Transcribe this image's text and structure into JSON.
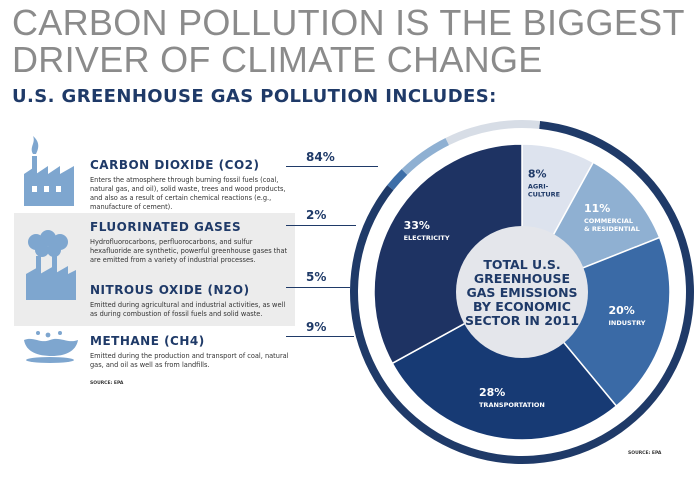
{
  "header": {
    "title_line1": "CARBON POLLUTION IS THE BIGGEST",
    "title_line2": "DRIVER OF CLIMATE CHANGE",
    "subtitle": "U.S. GREENHOUSE GAS POLLUTION INCLUDES:"
  },
  "gases": [
    {
      "name": "CARBON DIOXIDE (CO2)",
      "percent": "84%",
      "desc": "Enters the atmosphere through burning fossil fuels (coal, natural gas, and oil), solid waste, trees and wood products, and also as a result of certain chemical reactions (e.g., manufacture of cement)."
    },
    {
      "name": "FLUORINATED GASES",
      "percent": "2%",
      "desc": "Hydrofluorocarbons, perfluorocarbons, and sulfur hexafluoride are synthetic, powerful greenhouse gases that are emitted from a variety of industrial processes."
    },
    {
      "name": "NITROUS OXIDE (N2O)",
      "percent": "5%",
      "desc": "Emitted during agricultural and industrial activities, as well as during combustion of fossil fuels and solid waste."
    },
    {
      "name": "METHANE (CH4)",
      "percent": "9%",
      "desc": "Emitted during the production and transport of coal, natural gas, and oil as well as from landfills."
    }
  ],
  "source_left": "SOURCE: EPA",
  "source_right": "SOURCE: EPA",
  "colors": {
    "co2": "#1f3a68",
    "fluorinated": "#3e6fa8",
    "nitrous": "#8fb0d2",
    "methane": "#d7dde6",
    "electricity": "#1e3363",
    "agriculture": "#dde3ee",
    "commercial": "#8fb0d2",
    "industry": "#3a6aa6",
    "transportation": "#173a74",
    "center": "#e4e6eb"
  },
  "chart_data": [
    {
      "type": "pie",
      "title": "",
      "categories": [
        "CARBON DIOXIDE (CO2)",
        "FLUORINATED GASES",
        "NITROUS OXIDE (N2O)",
        "METHANE (CH4)"
      ],
      "values": [
        84,
        2,
        5,
        9
      ]
    },
    {
      "type": "pie",
      "title": "TOTAL U.S. GREENHOUSE GAS EMISSIONS BY ECONOMIC SECTOR IN 2011",
      "center_lines": [
        "TOTAL U.S.",
        "GREENHOUSE",
        "GAS EMISSIONS",
        "BY ECONOMIC",
        "SECTOR IN 2011"
      ],
      "slices": [
        {
          "value": 8,
          "pct": "8%",
          "label_lines": [
            "AGRI-",
            "CULTURE"
          ]
        },
        {
          "value": 11,
          "pct": "11%",
          "label_lines": [
            "COMMERCIAL",
            "& RESIDENTIAL"
          ]
        },
        {
          "value": 20,
          "pct": "20%",
          "label_lines": [
            "INDUSTRY"
          ]
        },
        {
          "value": 28,
          "pct": "28%",
          "label_lines": [
            "TRANSPORTATION"
          ]
        },
        {
          "value": 33,
          "pct": "33%",
          "label_lines": [
            "ELECTRICITY"
          ]
        }
      ]
    }
  ]
}
